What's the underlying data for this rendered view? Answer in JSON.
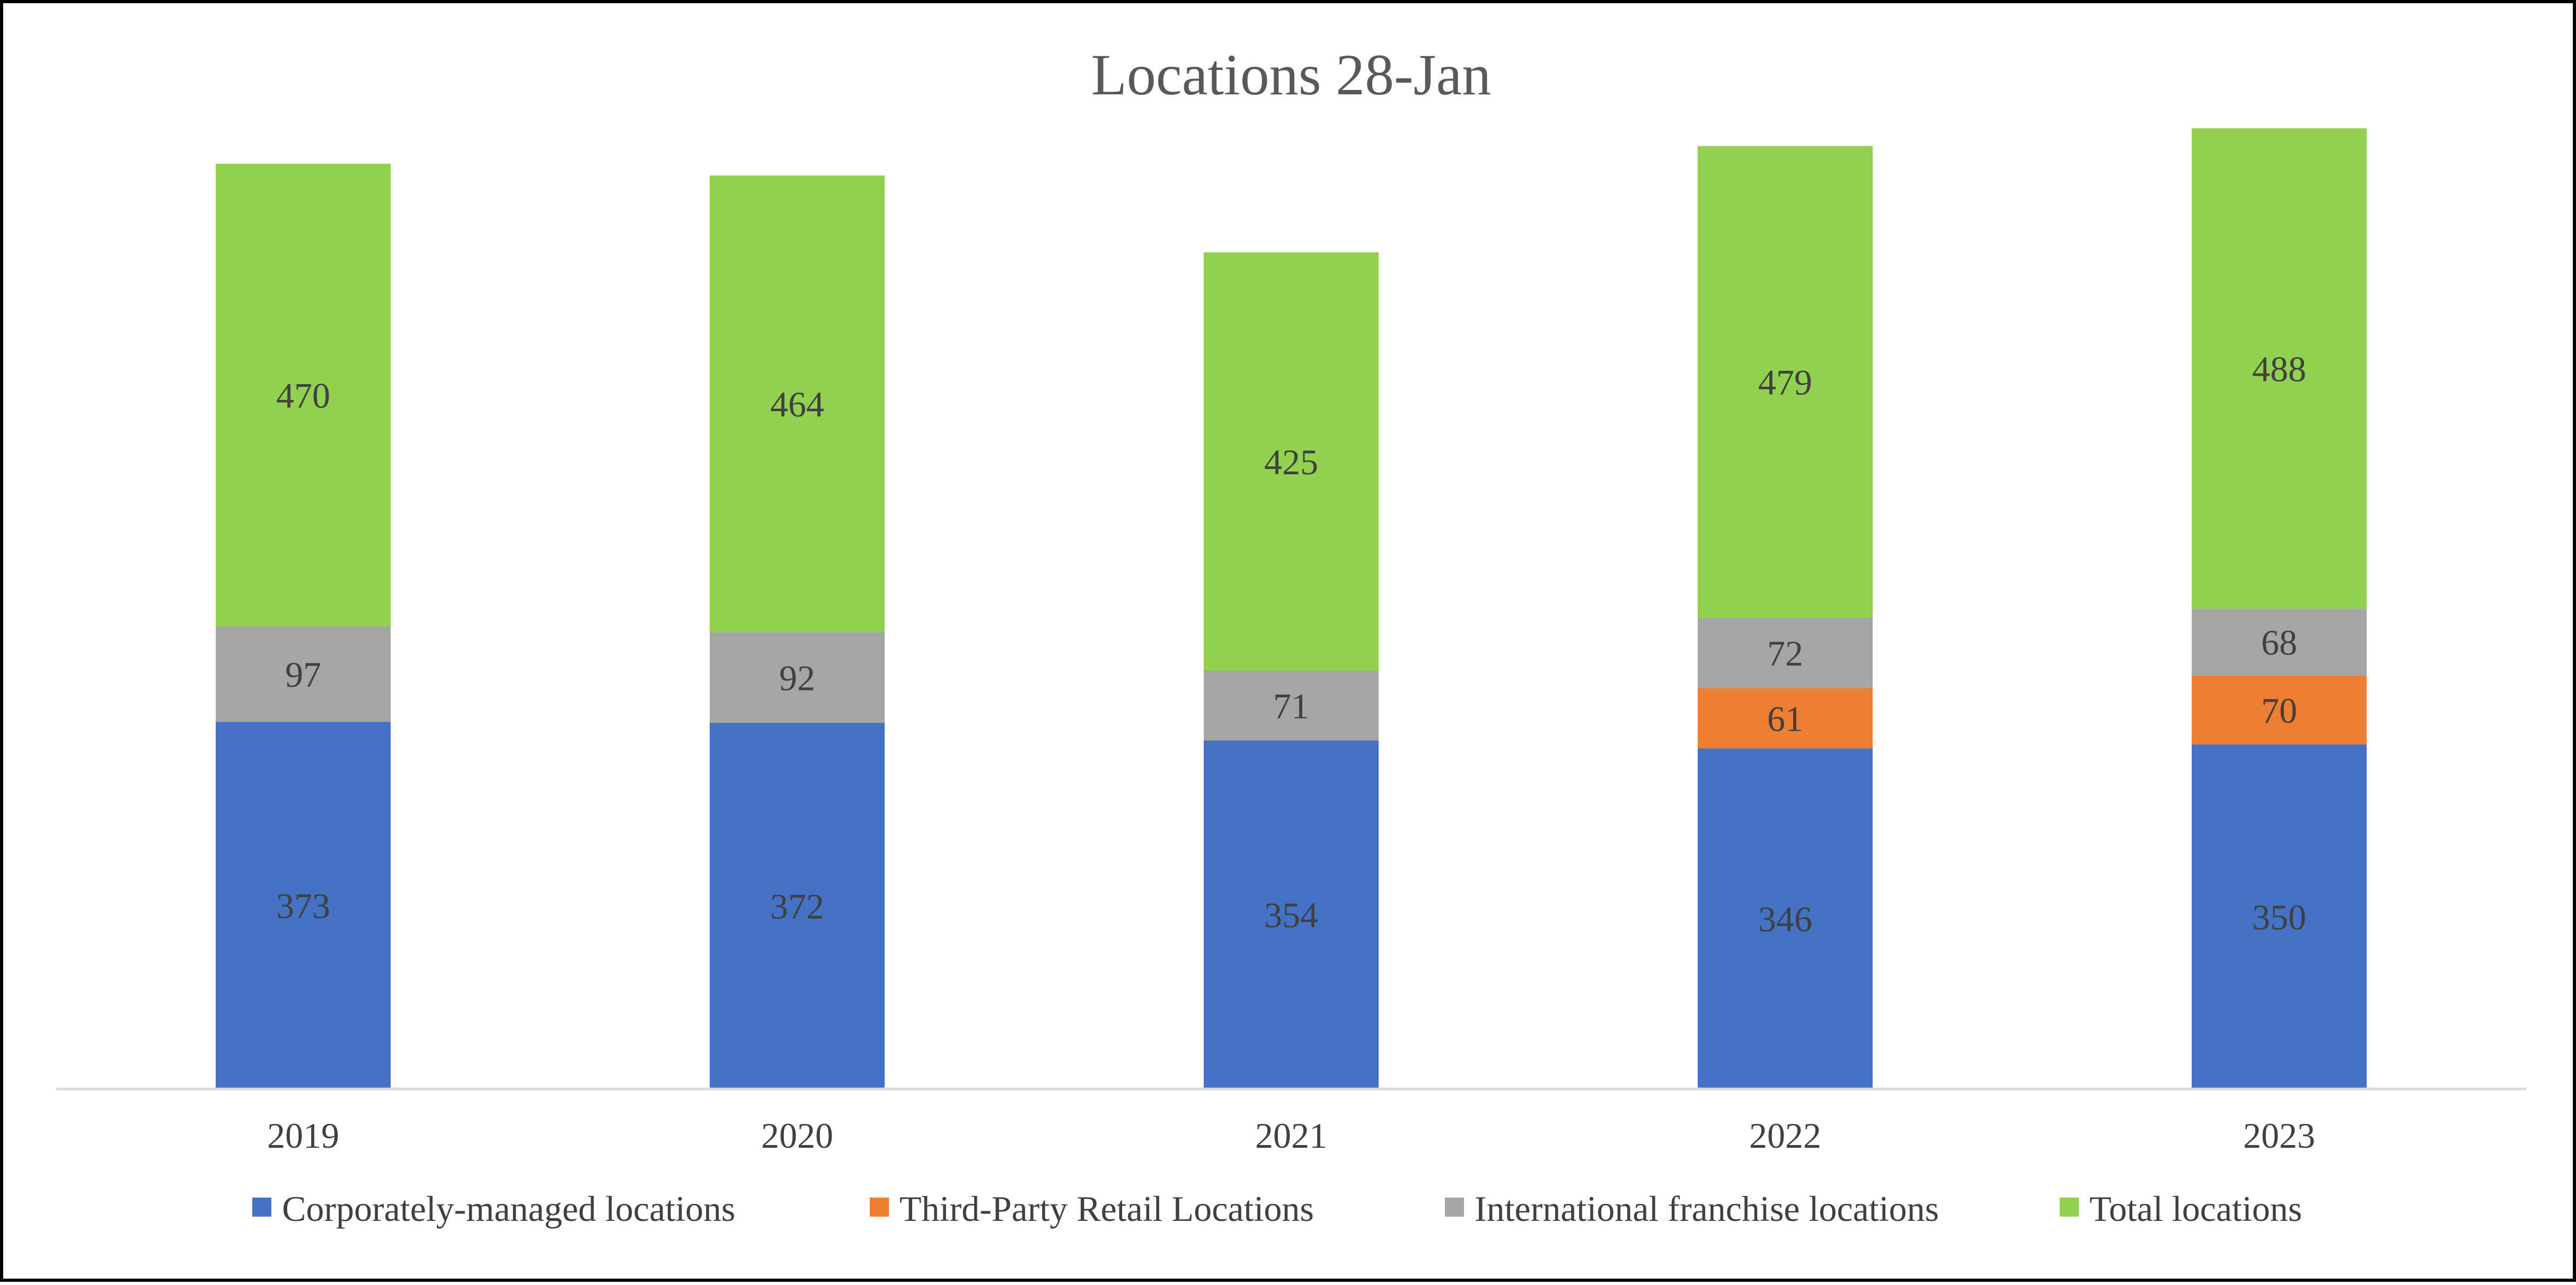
{
  "chart_data": {
    "type": "bar",
    "stacked": true,
    "title": "Locations 28-Jan",
    "xlabel": "",
    "ylabel": "",
    "categories": [
      "2019",
      "2020",
      "2021",
      "2022",
      "2023"
    ],
    "series": [
      {
        "name": "Corporately-managed locations",
        "color": "#4472C4",
        "values": [
          373,
          372,
          354,
          346,
          350
        ],
        "labels": [
          "373",
          "372",
          "354",
          "346",
          "350"
        ]
      },
      {
        "name": "Third-Party Retail Locations",
        "color": "#ED7D31",
        "values": [
          0,
          0,
          0,
          61,
          70
        ],
        "labels": [
          "-",
          "-",
          "-",
          "61",
          "70"
        ]
      },
      {
        "name": "International franchise locations",
        "color": "#A5A5A5",
        "values": [
          97,
          92,
          71,
          72,
          68
        ],
        "labels": [
          "97",
          "92",
          "71",
          "72",
          "68"
        ]
      },
      {
        "name": "Total locations",
        "color": "#92D050",
        "values": [
          470,
          464,
          425,
          479,
          488
        ],
        "labels": [
          "470",
          "464",
          "425",
          "479",
          "488"
        ]
      }
    ],
    "ylim": [
      0,
      940
    ],
    "grid": false,
    "legend_position": "bottom"
  }
}
